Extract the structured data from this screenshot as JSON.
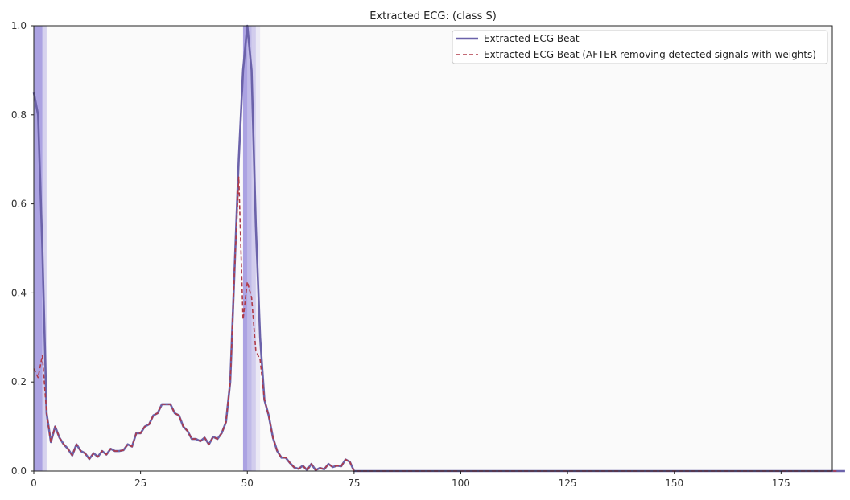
{
  "chart_data": {
    "type": "line",
    "title": "Extracted ECG: (class S)",
    "xlabel": "",
    "ylabel": "",
    "xlim": [
      0,
      187
    ],
    "ylim": [
      0,
      1.0
    ],
    "xticks": [
      0,
      25,
      50,
      75,
      100,
      125,
      150,
      175
    ],
    "yticks": [
      0.0,
      0.2,
      0.4,
      0.6,
      0.8,
      1.0
    ],
    "ytick_labels": [
      "0.0",
      "0.2",
      "0.4",
      "0.6",
      "0.8",
      "1.0"
    ],
    "grid": false,
    "legend_position": "top-right",
    "background_color": "#fafafa",
    "highlight_color": "#6a5acd",
    "highlight_regions": [
      {
        "x0": 0,
        "x1": 2,
        "alpha": 0.55
      },
      {
        "x0": 2,
        "x1": 3,
        "alpha": 0.25
      },
      {
        "x0": 49,
        "x1": 50,
        "alpha": 0.55
      },
      {
        "x0": 50,
        "x1": 51,
        "alpha": 0.4
      },
      {
        "x0": 51,
        "x1": 52,
        "alpha": 0.28
      },
      {
        "x0": 52,
        "x1": 53,
        "alpha": 0.1
      }
    ],
    "series": [
      {
        "name": "Extracted ECG Beat",
        "color": "#6b62aa",
        "style": "solid",
        "values": [
          0.85,
          0.8,
          0.5,
          0.13,
          0.065,
          0.1,
          0.075,
          0.06,
          0.05,
          0.035,
          0.06,
          0.045,
          0.04,
          0.027,
          0.04,
          0.032,
          0.045,
          0.037,
          0.05,
          0.045,
          0.045,
          0.047,
          0.06,
          0.055,
          0.085,
          0.085,
          0.1,
          0.105,
          0.125,
          0.13,
          0.15,
          0.15,
          0.15,
          0.13,
          0.125,
          0.1,
          0.09,
          0.072,
          0.072,
          0.067,
          0.075,
          0.06,
          0.077,
          0.072,
          0.085,
          0.11,
          0.2,
          0.45,
          0.7,
          0.9,
          1.0,
          0.9,
          0.55,
          0.3,
          0.16,
          0.125,
          0.075,
          0.045,
          0.03,
          0.03,
          0.018,
          0.008,
          0.005,
          0.012,
          0.002,
          0.016,
          0.002,
          0.007,
          0.004,
          0.016,
          0.009,
          0.012,
          0.011,
          0.026,
          0.021,
          0.0,
          0.0,
          0.0,
          0.0,
          0.0,
          0.0,
          0.0,
          0.0,
          0.0,
          0.0,
          0.0,
          0.0,
          0.0,
          0.0,
          0.0,
          0.0,
          0.0,
          0.0,
          0.0,
          0.0,
          0.0,
          0.0,
          0.0,
          0.0,
          0.0,
          0.0,
          0.0,
          0.0,
          0.0,
          0.0,
          0.0,
          0.0,
          0.0,
          0.0,
          0.0,
          0.0,
          0.0,
          0.0,
          0.0,
          0.0,
          0.0,
          0.0,
          0.0,
          0.0,
          0.0,
          0.0,
          0.0,
          0.0,
          0.0,
          0.0,
          0.0,
          0.0,
          0.0,
          0.0,
          0.0,
          0.0,
          0.0,
          0.0,
          0.0,
          0.0,
          0.0,
          0.0,
          0.0,
          0.0,
          0.0,
          0.0,
          0.0,
          0.0,
          0.0,
          0.0,
          0.0,
          0.0,
          0.0,
          0.0,
          0.0,
          0.0,
          0.0,
          0.0,
          0.0,
          0.0,
          0.0,
          0.0,
          0.0,
          0.0,
          0.0,
          0.0,
          0.0,
          0.0,
          0.0,
          0.0,
          0.0,
          0.0,
          0.0,
          0.0,
          0.0,
          0.0,
          0.0,
          0.0,
          0.0,
          0.0,
          0.0,
          0.0,
          0.0,
          0.0,
          0.0,
          0.0,
          0.0,
          0.0,
          0.0,
          0.0,
          0.0,
          0.0,
          0.0,
          0.0,
          0.0,
          0.0
        ]
      },
      {
        "name": "Extracted ECG Beat (AFTER removing detected signals with weights)",
        "color": "#b03a48",
        "style": "dashed",
        "values": [
          0.23,
          0.21,
          0.26,
          0.13,
          0.065,
          0.1,
          0.075,
          0.06,
          0.05,
          0.035,
          0.06,
          0.045,
          0.04,
          0.027,
          0.04,
          0.032,
          0.045,
          0.037,
          0.05,
          0.045,
          0.045,
          0.047,
          0.06,
          0.055,
          0.085,
          0.085,
          0.1,
          0.105,
          0.125,
          0.13,
          0.15,
          0.15,
          0.15,
          0.13,
          0.125,
          0.1,
          0.09,
          0.072,
          0.072,
          0.067,
          0.075,
          0.06,
          0.077,
          0.072,
          0.085,
          0.11,
          0.2,
          0.45,
          0.66,
          0.34,
          0.425,
          0.39,
          0.27,
          0.25,
          0.16,
          0.125,
          0.075,
          0.045,
          0.03,
          0.03,
          0.018,
          0.008,
          0.005,
          0.012,
          0.002,
          0.016,
          0.002,
          0.007,
          0.004,
          0.016,
          0.009,
          0.012,
          0.011,
          0.026,
          0.021,
          0.0,
          0.0,
          0.0,
          0.0,
          0.0,
          0.0,
          0.0,
          0.0,
          0.0,
          0.0,
          0.0,
          0.0,
          0.0,
          0.0,
          0.0,
          0.0,
          0.0,
          0.0,
          0.0,
          0.0,
          0.0,
          0.0,
          0.0,
          0.0,
          0.0,
          0.0,
          0.0,
          0.0,
          0.0,
          0.0,
          0.0,
          0.0,
          0.0,
          0.0,
          0.0,
          0.0,
          0.0,
          0.0,
          0.0,
          0.0,
          0.0,
          0.0,
          0.0,
          0.0,
          0.0,
          0.0,
          0.0,
          0.0,
          0.0,
          0.0,
          0.0,
          0.0,
          0.0,
          0.0,
          0.0,
          0.0,
          0.0,
          0.0,
          0.0,
          0.0,
          0.0,
          0.0,
          0.0,
          0.0,
          0.0,
          0.0,
          0.0,
          0.0,
          0.0,
          0.0,
          0.0,
          0.0,
          0.0,
          0.0,
          0.0,
          0.0,
          0.0,
          0.0,
          0.0,
          0.0,
          0.0,
          0.0,
          0.0,
          0.0,
          0.0,
          0.0,
          0.0,
          0.0,
          0.0,
          0.0,
          0.0,
          0.0,
          0.0,
          0.0,
          0.0,
          0.0,
          0.0,
          0.0,
          0.0,
          0.0,
          0.0,
          0.0,
          0.0,
          0.0,
          0.0,
          0.0,
          0.0,
          0.0,
          0.0,
          0.0,
          0.0,
          0.0,
          0.0,
          0.0
        ]
      }
    ]
  }
}
